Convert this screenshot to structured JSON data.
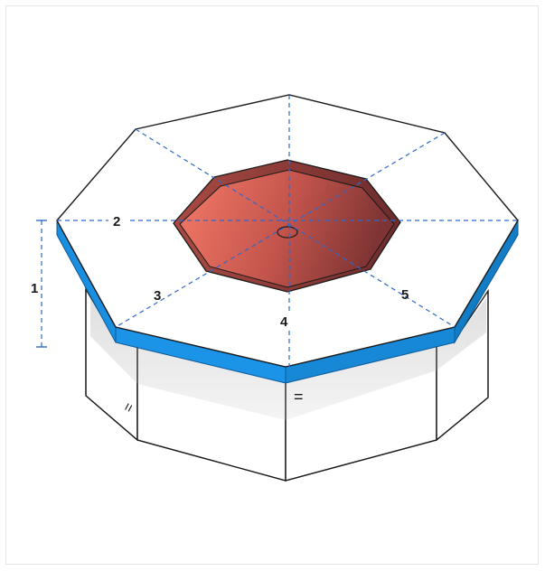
{
  "labels": {
    "height": "1",
    "segment_2": "2",
    "segment_3": "3",
    "segment_4": "4",
    "segment_5": "5"
  },
  "tick_marks": {
    "left_face": "=",
    "front_face": "="
  },
  "colors": {
    "rim_blue": "#1a8fe0",
    "rim_dark": "#0f6cb3",
    "dash_blue": "#2f68c9",
    "fire_pit_light": "#f47a68",
    "fire_pit_dark": "#8a3a36",
    "shadow_band": "#e6e6e6",
    "outline": "#1a1a1a",
    "frame_border": "#e4e4e4"
  }
}
